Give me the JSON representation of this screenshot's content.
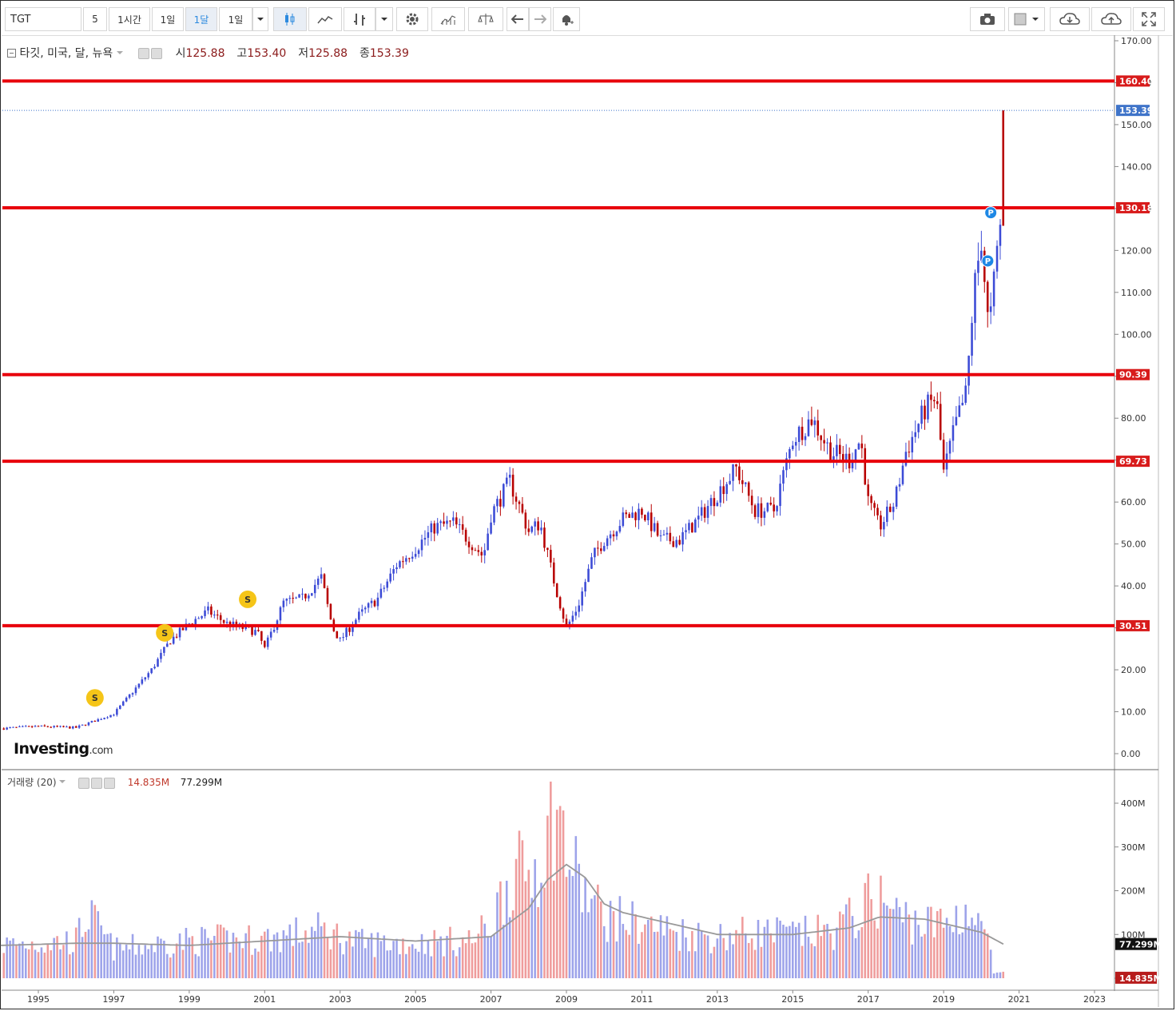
{
  "toolbar": {
    "symbol": "TGT",
    "timeframes": [
      "5",
      "1시간",
      "1일",
      "1달",
      "1일"
    ],
    "active_timeframe": "1달",
    "icons": [
      "chevron-down-icon",
      "candlestick-icon",
      "line-chart-icon",
      "bar-type-icon",
      "chevron-down-icon",
      "gear-icon",
      "indicator-icon",
      "compare-scale-icon",
      "undo-icon",
      "redo-icon",
      "alert-bell-icon",
      "camera-icon",
      "color-box-icon",
      "chevron-down-icon",
      "cloud-download-icon",
      "cloud-upload-icon",
      "fullscreen-icon"
    ]
  },
  "legend": {
    "name": "타깃, 미국, 달, 뉴욕",
    "open_label": "시",
    "open": "125.88",
    "high_label": "고",
    "high": "153.40",
    "low_label": "저",
    "low": "125.88",
    "close_label": "종",
    "close": "153.39"
  },
  "volume_legend": {
    "name": "거래량 (20)",
    "volume": "14.835M",
    "ma": "77.299M"
  },
  "brand": {
    "logo": "Investing",
    "suffix": ".com"
  },
  "colors": {
    "up": "#3c4bd6",
    "down": "#b80000",
    "hline": "#e8000b",
    "vol_up": "#9da3ea",
    "vol_down": "#ef9c9c",
    "current": "#3f74c9",
    "ma": "#999999"
  },
  "chart_data": [
    {
      "type": "candlestick",
      "interval": "monthly",
      "x_range": [
        1995,
        2023
      ],
      "ylim": [
        0,
        170
      ],
      "yticks": [
        0,
        10,
        20,
        30,
        40,
        50,
        60,
        70,
        80,
        90,
        100,
        110,
        120,
        130,
        140,
        150,
        160,
        170
      ],
      "xticks": [
        "1995",
        "1997",
        "1999",
        "2001",
        "2003",
        "2005",
        "2007",
        "2009",
        "2011",
        "2013",
        "2015",
        "2017",
        "2019",
        "2021",
        "2023"
      ],
      "price_path": [
        [
          1994.0,
          6
        ],
        [
          1995.0,
          6.5
        ],
        [
          1996.0,
          6.2
        ],
        [
          1997.0,
          9.5
        ],
        [
          1998.0,
          20
        ],
        [
          1998.5,
          27
        ],
        [
          1999.0,
          31
        ],
        [
          1999.5,
          34
        ],
        [
          2000.0,
          31
        ],
        [
          2000.8,
          29
        ],
        [
          2001.0,
          25
        ],
        [
          2001.5,
          36
        ],
        [
          2002.0,
          37
        ],
        [
          2002.5,
          42
        ],
        [
          2002.8,
          30
        ],
        [
          2003.0,
          27
        ],
        [
          2003.5,
          33
        ],
        [
          2004.0,
          37
        ],
        [
          2004.5,
          45
        ],
        [
          2005.0,
          49
        ],
        [
          2005.5,
          54
        ],
        [
          2006.0,
          55
        ],
        [
          2006.5,
          50
        ],
        [
          2006.8,
          47
        ],
        [
          2007.0,
          57
        ],
        [
          2007.5,
          65
        ],
        [
          2008.0,
          53
        ],
        [
          2008.3,
          55
        ],
        [
          2008.7,
          40
        ],
        [
          2009.0,
          30
        ],
        [
          2009.3,
          35
        ],
        [
          2009.7,
          47
        ],
        [
          2010.0,
          51
        ],
        [
          2010.5,
          56
        ],
        [
          2011.0,
          58
        ],
        [
          2011.5,
          51
        ],
        [
          2012.0,
          51
        ],
        [
          2012.5,
          56
        ],
        [
          2013.0,
          62
        ],
        [
          2013.5,
          68
        ],
        [
          2014.0,
          58
        ],
        [
          2014.5,
          58
        ],
        [
          2015.0,
          75
        ],
        [
          2015.5,
          80
        ],
        [
          2016.0,
          72
        ],
        [
          2016.5,
          70
        ],
        [
          2016.8,
          75
        ],
        [
          2017.0,
          60
        ],
        [
          2017.3,
          54
        ],
        [
          2017.7,
          60
        ],
        [
          2018.0,
          72
        ],
        [
          2018.5,
          82
        ],
        [
          2018.8,
          85
        ],
        [
          2019.0,
          67
        ],
        [
          2019.3,
          78
        ],
        [
          2019.6,
          86
        ],
        [
          2019.8,
          110
        ],
        [
          2020.0,
          123
        ],
        [
          2020.2,
          100
        ],
        [
          2020.4,
          118
        ],
        [
          2020.5,
          126
        ],
        [
          2020.58,
          153.39
        ]
      ],
      "last_candle": {
        "open": 125.88,
        "high": 153.4,
        "low": 125.88,
        "close": 153.39
      },
      "markers": [
        {
          "label": "S",
          "x": 1996.5,
          "y": 13.3
        },
        {
          "label": "S",
          "x": 1998.35,
          "y": 28.8
        },
        {
          "label": "S",
          "x": 2000.55,
          "y": 36.8
        },
        {
          "label": "P",
          "x": 2020.25,
          "y": 129
        },
        {
          "label": "P",
          "x": 2020.17,
          "y": 117.5
        }
      ],
      "horizontal_lines": [
        160.4,
        130.18,
        90.39,
        69.73,
        30.51
      ],
      "current_price": 153.39
    },
    {
      "type": "bar",
      "name": "거래량 (20)",
      "ylim": [
        0,
        420
      ],
      "yticks": [
        "0",
        "100M",
        "200M",
        "300M",
        "400M"
      ],
      "volume_path_millions": [
        [
          1994.0,
          80
        ],
        [
          1996.0,
          90
        ],
        [
          1996.3,
          155
        ],
        [
          1997.0,
          70
        ],
        [
          1999.0,
          90
        ],
        [
          2001.0,
          95
        ],
        [
          2002.5,
          115
        ],
        [
          2003.5,
          85
        ],
        [
          2005.0,
          85
        ],
        [
          2006.5,
          90
        ],
        [
          2007.0,
          130
        ],
        [
          2007.5,
          250
        ],
        [
          2008.0,
          250
        ],
        [
          2008.5,
          330
        ],
        [
          2008.7,
          420
        ],
        [
          2009.0,
          300
        ],
        [
          2009.5,
          200
        ],
        [
          2010.0,
          150
        ],
        [
          2011.0,
          130
        ],
        [
          2012.0,
          110
        ],
        [
          2013.0,
          100
        ],
        [
          2014.0,
          110
        ],
        [
          2015.0,
          105
        ],
        [
          2016.0,
          110
        ],
        [
          2016.8,
          160
        ],
        [
          2017.2,
          200
        ],
        [
          2017.8,
          150
        ],
        [
          2018.5,
          130
        ],
        [
          2019.0,
          130
        ],
        [
          2019.6,
          165
        ],
        [
          2020.0,
          110
        ],
        [
          2020.2,
          120
        ],
        [
          2020.3,
          8
        ],
        [
          2020.58,
          14.835
        ]
      ],
      "ma20_path_millions": [
        [
          1994.0,
          75
        ],
        [
          1996.0,
          80
        ],
        [
          1997.0,
          80
        ],
        [
          1999.0,
          75
        ],
        [
          2001.0,
          85
        ],
        [
          2003.0,
          95
        ],
        [
          2005.0,
          85
        ],
        [
          2007.0,
          95
        ],
        [
          2008.0,
          160
        ],
        [
          2008.5,
          225
        ],
        [
          2009.0,
          260
        ],
        [
          2009.5,
          230
        ],
        [
          2010.0,
          170
        ],
        [
          2010.5,
          150
        ],
        [
          2012.0,
          120
        ],
        [
          2013.0,
          100
        ],
        [
          2015.0,
          100
        ],
        [
          2016.5,
          115
        ],
        [
          2017.3,
          140
        ],
        [
          2018.5,
          135
        ],
        [
          2019.5,
          115
        ],
        [
          2020.0,
          105
        ],
        [
          2020.6,
          77.299
        ]
      ],
      "volume_label": "14.835M",
      "ma_label": "77.299M"
    }
  ]
}
